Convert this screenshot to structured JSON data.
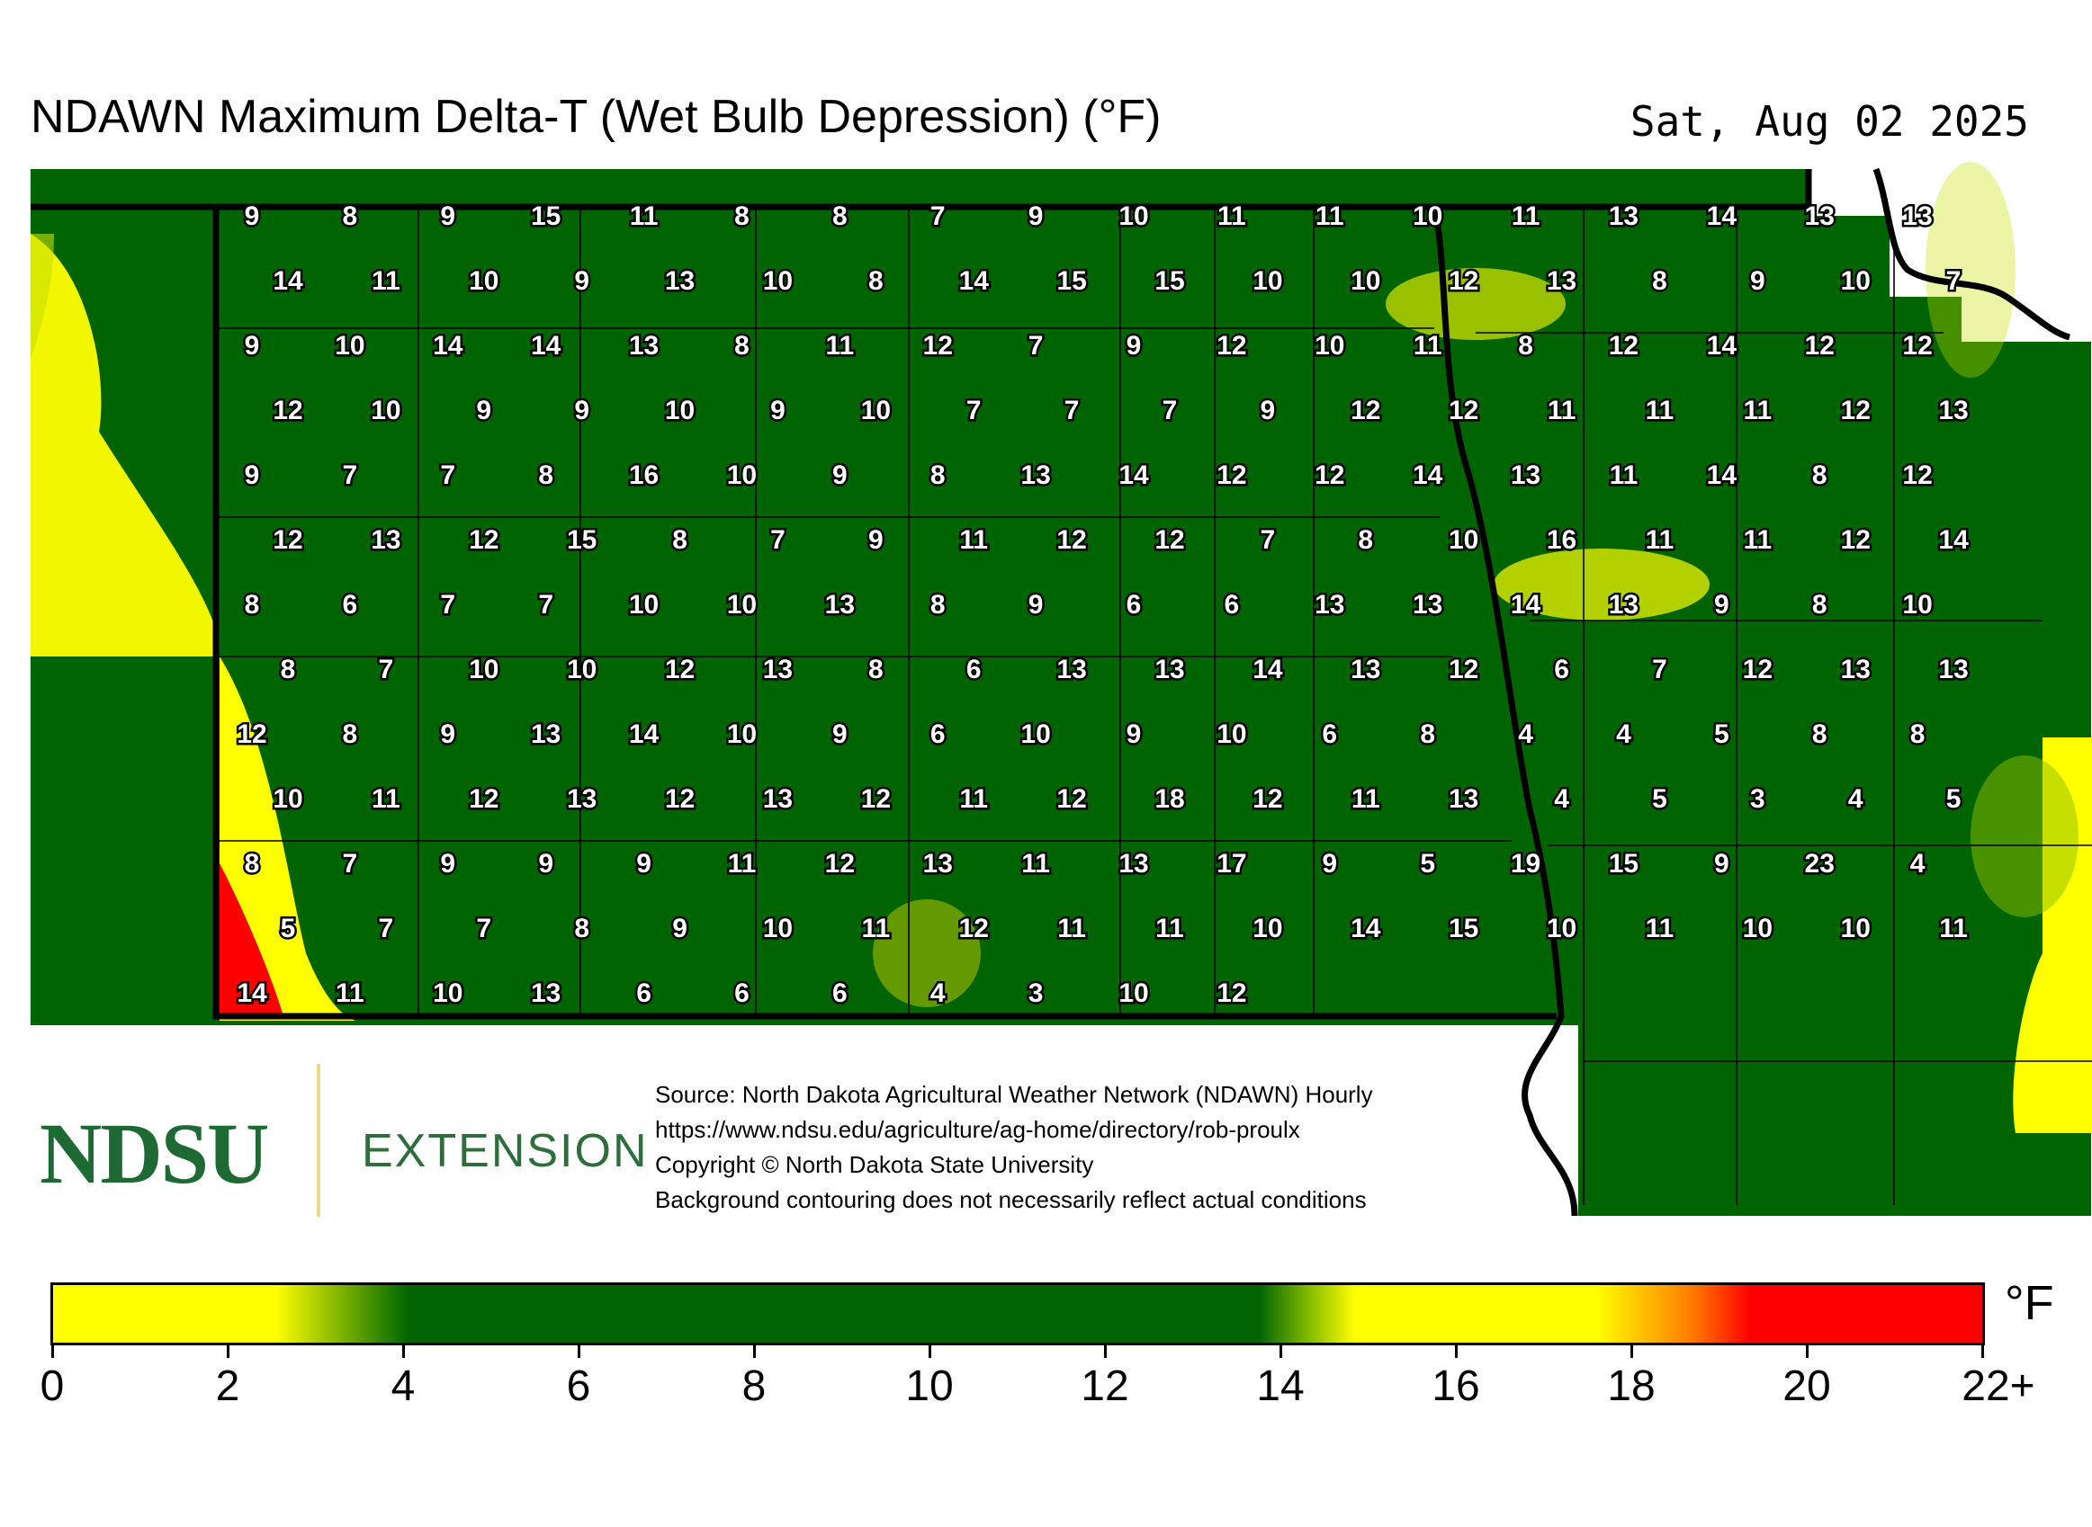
{
  "title": "NDAWN Maximum Delta-T (Wet Bulb Depression) (°F)",
  "date": "Sat, Aug 02 2025",
  "credits": [
    "Source: North Dakota Agricultural Weather Network (NDAWN) Hourly",
    "https://www.ndsu.edu/agriculture/ag-home/directory/rob-proulx",
    "Copyright © North Dakota State University",
    "Background contouring does not necessarily reflect actual conditions"
  ],
  "logo": {
    "wordmark": "NDSU",
    "subtitle": "EXTENSION"
  },
  "legend": {
    "unit": "°F",
    "ticks": [
      "0",
      "2",
      "4",
      "6",
      "8",
      "10",
      "12",
      "14",
      "16",
      "18",
      "20",
      "22+"
    ],
    "colors": {
      "low": "#ffff00",
      "mid": "#006400",
      "high": "#ff0000",
      "orange": "#ff7a00"
    }
  },
  "colors": {
    "background_field": "#006400",
    "border": "#000000",
    "county_lines": "#000000"
  },
  "station_values": [
    "9",
    "8",
    "9",
    "15",
    "11",
    "8",
    "8",
    "7",
    "9",
    "10",
    "11",
    "11",
    "10",
    "11",
    "13",
    "14",
    "13",
    "13",
    "14",
    "11",
    "10",
    "9",
    "13",
    "10",
    "8",
    "14",
    "15",
    "15",
    "10",
    "10",
    "12",
    "13",
    "8",
    "9",
    "10",
    "7",
    "9",
    "10",
    "14",
    "14",
    "13",
    "8",
    "11",
    "12",
    "7",
    "9",
    "12",
    "10",
    "11",
    "8",
    "12",
    "14",
    "12",
    "12",
    "12",
    "10",
    "9",
    "9",
    "10",
    "9",
    "10",
    "7",
    "7",
    "7",
    "9",
    "12",
    "12",
    "11",
    "11",
    "11",
    "12",
    "13",
    "9",
    "7",
    "7",
    "8",
    "16",
    "10",
    "9",
    "8",
    "13",
    "14",
    "12",
    "12",
    "14",
    "13",
    "11",
    "14",
    "8",
    "12",
    "12",
    "13",
    "12",
    "15",
    "8",
    "7",
    "9",
    "11",
    "12",
    "12",
    "7",
    "8",
    "10",
    "16",
    "11",
    "11",
    "12",
    "14",
    "8",
    "6",
    "7",
    "7",
    "10",
    "10",
    "13",
    "8",
    "9",
    "6",
    "6",
    "13",
    "13",
    "14",
    "13",
    "9",
    "8",
    "10",
    "8",
    "7",
    "10",
    "10",
    "12",
    "13",
    "8",
    "6",
    "13",
    "13",
    "14",
    "13",
    "12",
    "6",
    "7",
    "12",
    "13",
    "13",
    "12",
    "8",
    "9",
    "13",
    "14",
    "10",
    "9",
    "6",
    "10",
    "9",
    "10",
    "6",
    "8",
    "4",
    "4",
    "5",
    "8",
    "8",
    "10",
    "11",
    "12",
    "13",
    "12",
    "13",
    "12",
    "11",
    "12",
    "18",
    "12",
    "11",
    "13",
    "4",
    "5",
    "3",
    "4",
    "5",
    "8",
    "7",
    "9",
    "9",
    "9",
    "11",
    "12",
    "13",
    "11",
    "13",
    "17",
    "9",
    "5",
    "19",
    "15",
    "9",
    "23",
    "4",
    "5",
    "7",
    "7",
    "8",
    "9",
    "10",
    "11",
    "12",
    "11",
    "11",
    "10",
    "14",
    "15",
    "10",
    "11",
    "10",
    "10",
    "11",
    "14",
    "11",
    "10",
    "13",
    "6",
    "6",
    "6",
    "4",
    "3",
    "10",
    "12"
  ]
}
